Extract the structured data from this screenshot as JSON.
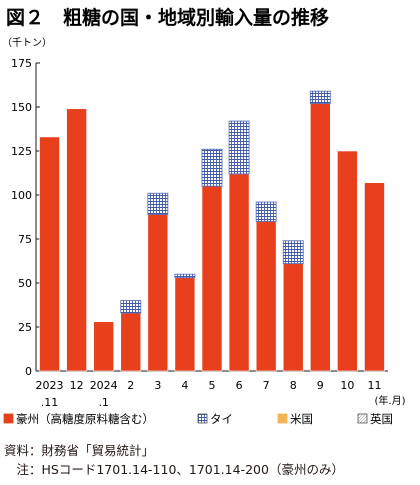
{
  "title": "図２　粗糖の国・地域別輸入量の推移",
  "chart_data": {
    "type": "bar",
    "stacked": true,
    "yunit": "（千トン）",
    "xunit": "(年.月)",
    "ylim": [
      0,
      175
    ],
    "yticks": [
      0,
      25,
      50,
      75,
      100,
      125,
      150,
      175
    ],
    "grid": false,
    "legend_position": "bottom",
    "categories": [
      {
        "line1": "2023",
        "line2": ".11"
      },
      {
        "line1": "12",
        "line2": ""
      },
      {
        "line1": "2024",
        "line2": ".1"
      },
      {
        "line1": "2",
        "line2": ""
      },
      {
        "line1": "3",
        "line2": ""
      },
      {
        "line1": "4",
        "line2": ""
      },
      {
        "line1": "5",
        "line2": ""
      },
      {
        "line1": "6",
        "line2": ""
      },
      {
        "line1": "7",
        "line2": ""
      },
      {
        "line1": "8",
        "line2": ""
      },
      {
        "line1": "9",
        "line2": ""
      },
      {
        "line1": "10",
        "line2": ""
      },
      {
        "line1": "11",
        "line2": ""
      }
    ],
    "series": [
      {
        "name": "豪州（高糖度原料糖含む）",
        "color": "#e8401c",
        "pattern": "solid",
        "values": [
          133,
          149,
          28,
          33,
          89,
          53,
          105,
          112,
          85,
          61,
          152,
          125,
          107
        ]
      },
      {
        "name": "タイ",
        "color": "#4a63b3",
        "pattern": "grid",
        "values": [
          0,
          0,
          0,
          7,
          12,
          2,
          21,
          30,
          11,
          13,
          7,
          0,
          0
        ]
      },
      {
        "name": "米国",
        "color": "#f5b454",
        "pattern": "solid",
        "values": [
          0,
          0,
          0,
          0,
          0,
          0,
          0,
          0,
          0,
          0,
          0,
          0,
          0
        ]
      },
      {
        "name": "英国",
        "color": "#ffffff",
        "pattern": "hatch",
        "values": [
          0,
          0,
          0,
          0,
          0,
          0,
          0,
          0,
          0,
          0,
          0,
          0,
          0
        ]
      }
    ]
  },
  "notes": {
    "source": "資料：財務省「貿易統計」",
    "note": "　注：HSコード1701.14-110、1701.14-200（豪州のみ）"
  }
}
